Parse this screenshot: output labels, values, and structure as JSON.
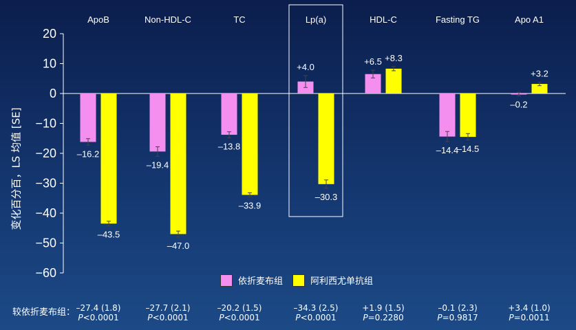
{
  "chart_data": {
    "type": "bar",
    "ylabel": "变化百分百，LS 均值 [SE]",
    "ylim": [
      -60,
      20
    ],
    "yticks": [
      20,
      10,
      0,
      -10,
      -20,
      -30,
      -40,
      -50,
      -60
    ],
    "categories": [
      "ApoB",
      "Non-HDL-C",
      "TC",
      "Lp(a)",
      "HDL-C",
      "Fasting TG",
      "Apo A1"
    ],
    "series": [
      {
        "name": "依折麦布组",
        "color": "#f48ff0",
        "values": [
          -16.2,
          -19.4,
          -13.8,
          4.0,
          6.5,
          -14.4,
          -0.2
        ],
        "errors": [
          1.1,
          1.6,
          1.0,
          2.0,
          1.3,
          1.7,
          0.6
        ],
        "labels": [
          "–16.2",
          "–19.4",
          "–13.8",
          "+4.0",
          "+6.5",
          "–14.4",
          "–0.2"
        ]
      },
      {
        "name": "阿利西尤单抗组",
        "color": "#ffff00",
        "values": [
          -43.5,
          -47.0,
          -33.9,
          -30.3,
          8.3,
          -14.5,
          3.2
        ],
        "errors": [
          0.8,
          1.0,
          0.7,
          1.4,
          0.7,
          1.1,
          0.6
        ],
        "labels": [
          "–43.5",
          "–47.0",
          "–33.9",
          "–30.3",
          "+8.3",
          "–14.5",
          "+3.2"
        ]
      }
    ],
    "highlight_category": "Lp(a)",
    "legend_position": "bottom"
  },
  "bottom_label": "较依折麦布组：",
  "comparisons": [
    {
      "diff": "–27.4 (1.8)",
      "p_letter": "P",
      "p_value": "<0.0001"
    },
    {
      "diff": "–27.7 (2.1)",
      "p_letter": "P",
      "p_value": "<0.0001"
    },
    {
      "diff": "–20.2 (1.5)",
      "p_letter": "P",
      "p_value": "<0.0001"
    },
    {
      "diff": "–34.3 (2.5)",
      "p_letter": "P",
      "p_value": "<0.0001"
    },
    {
      "diff": "+1.9 (1.5)",
      "p_letter": "P",
      "p_value": "=0.2280"
    },
    {
      "diff": "–0.1 (2.3)",
      "p_letter": "P",
      "p_value": "=0.9817"
    },
    {
      "diff": "+3.4 (1.0)",
      "p_letter": "P",
      "p_value": "=0.0011"
    }
  ],
  "legend": {
    "item1": "依折麦布组",
    "item2": "阿利西尤单抗组",
    "color1": "#f48ff0",
    "color2": "#ffff00"
  }
}
